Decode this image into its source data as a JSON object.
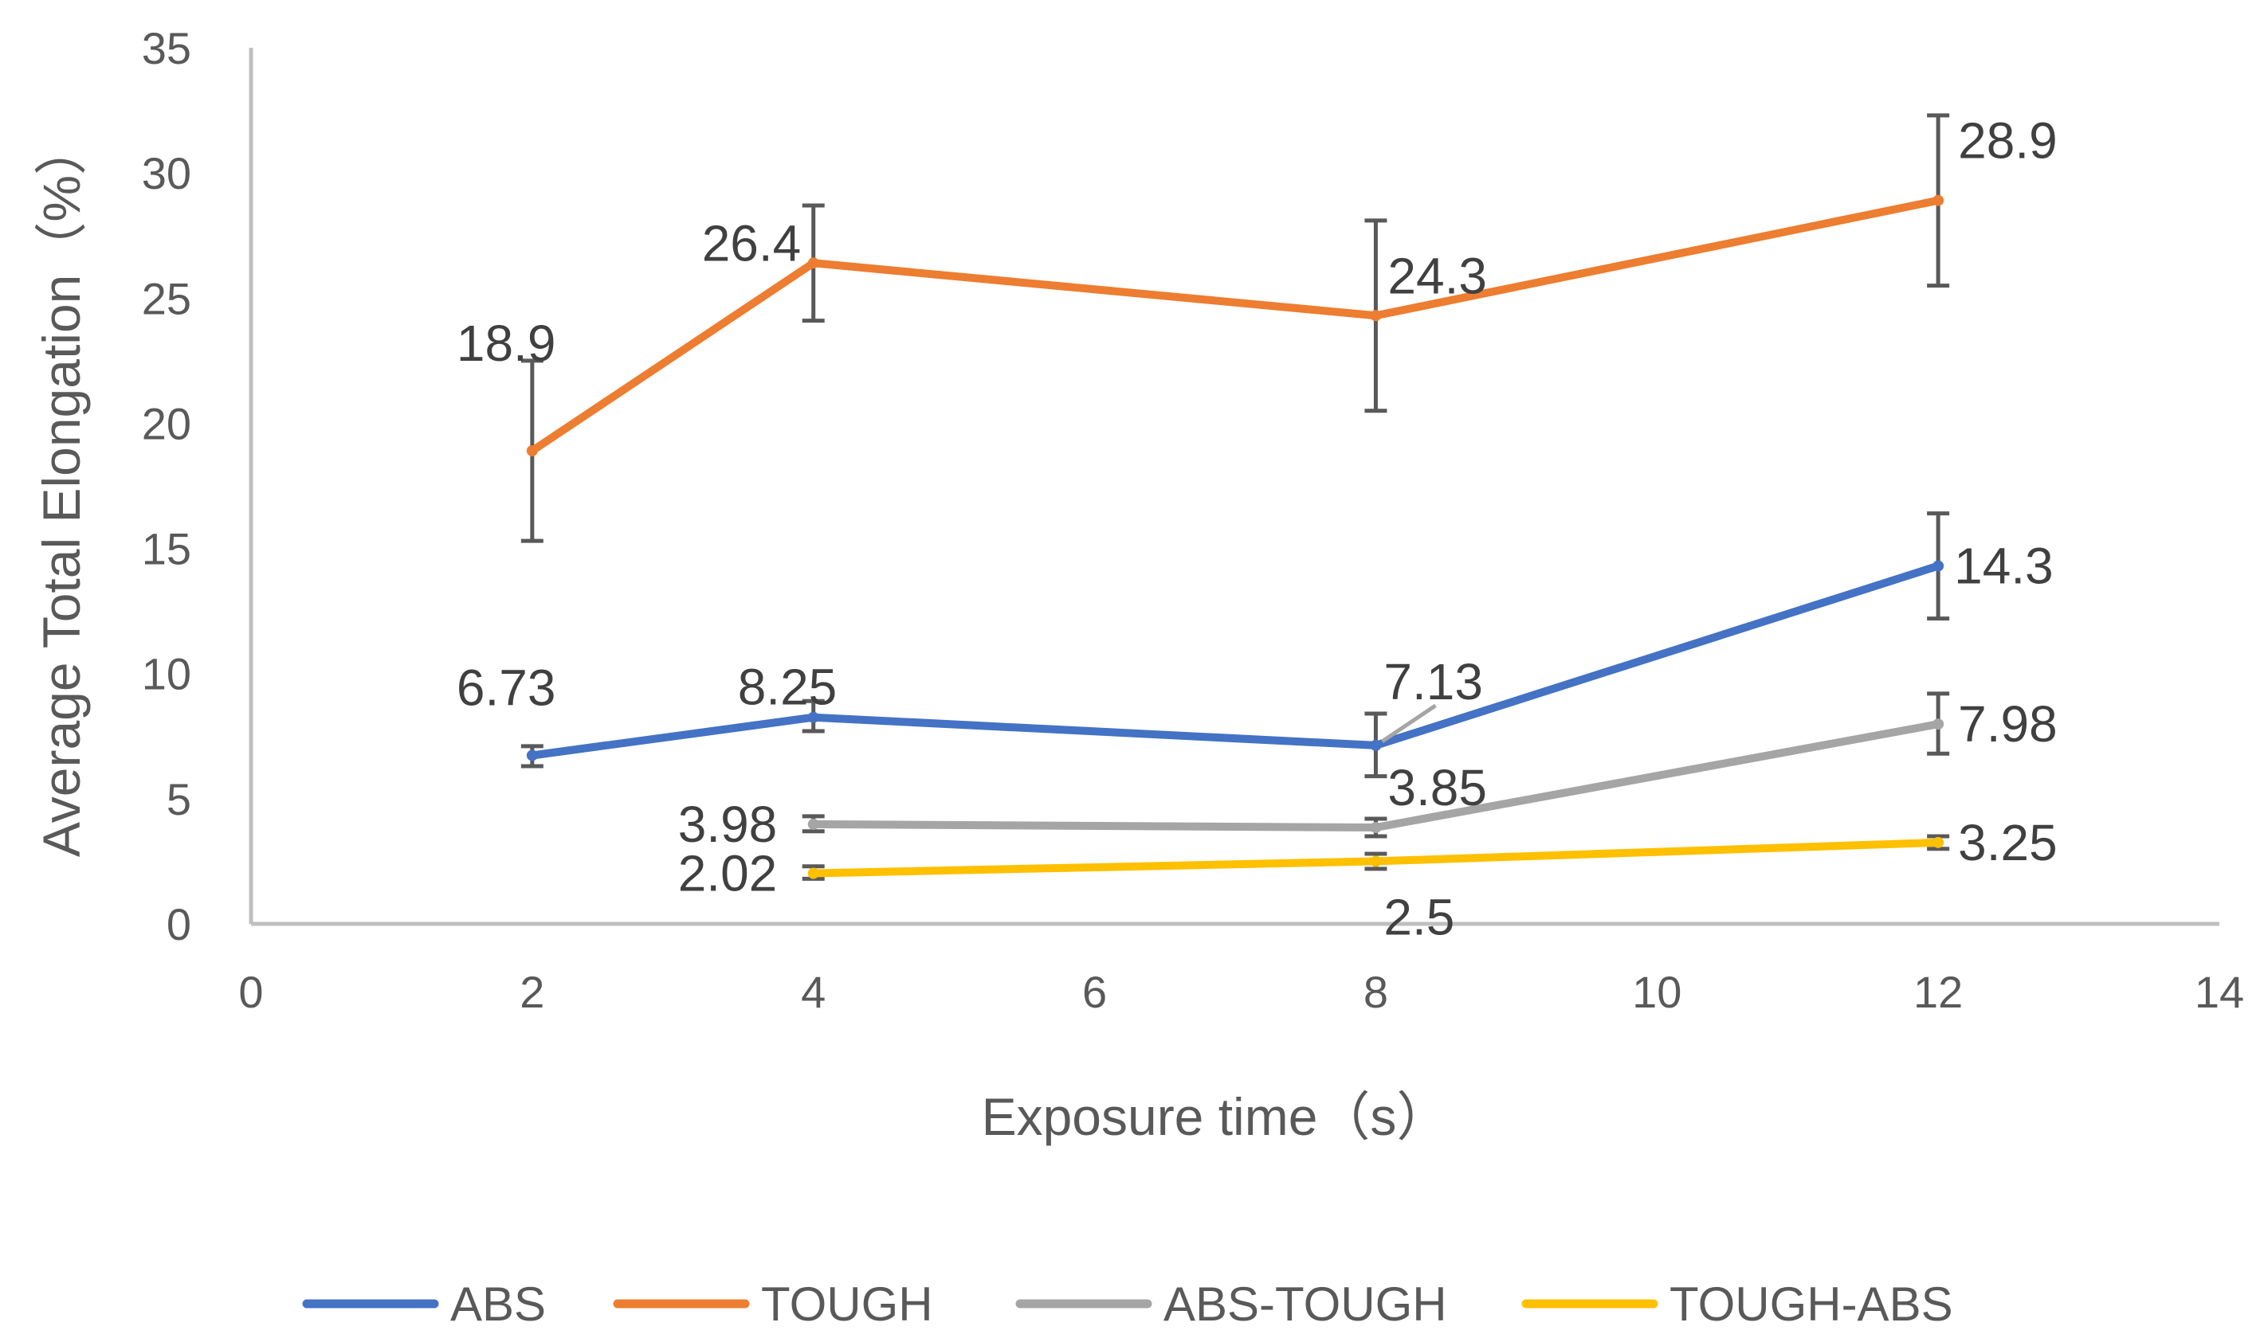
{
  "chart_data": {
    "type": "line",
    "title": "",
    "xlabel": "Exposure time（s）",
    "ylabel": "Average Total Elongation（%）",
    "xlim": [
      0,
      14
    ],
    "ylim": [
      0,
      35
    ],
    "x_ticks": [
      "0",
      "2",
      "4",
      "6",
      "8",
      "10",
      "12",
      "14"
    ],
    "y_ticks": [
      "0",
      "5",
      "10",
      "15",
      "20",
      "25",
      "30",
      "35"
    ],
    "grid": false,
    "legend_position": "bottom",
    "series": [
      {
        "name": "ABS",
        "color": "#4472C4",
        "x": [
          2,
          4,
          8,
          12
        ],
        "values": [
          6.73,
          8.25,
          7.13,
          14.3
        ],
        "labels": [
          "6.73",
          "8.25",
          "7.13",
          "14.3"
        ],
        "error_low": [
          6.3,
          7.7,
          5.9,
          12.2
        ],
        "error_high": [
          7.1,
          8.9,
          8.4,
          16.4
        ]
      },
      {
        "name": "TOUGH",
        "color": "#ED7D31",
        "x": [
          2,
          4,
          8,
          12
        ],
        "values": [
          18.9,
          26.4,
          24.3,
          28.9
        ],
        "labels": [
          "18.9",
          "26.4",
          "24.3",
          "28.9"
        ],
        "error_low": [
          15.3,
          24.1,
          20.5,
          25.5
        ],
        "error_high": [
          22.5,
          28.7,
          28.1,
          32.3
        ]
      },
      {
        "name": "ABS-TOUGH",
        "color": "#A5A5A5",
        "x": [
          4,
          8,
          12
        ],
        "values": [
          3.98,
          3.85,
          7.98
        ],
        "labels": [
          "3.98",
          "3.85",
          "7.98"
        ],
        "error_low": [
          3.7,
          3.5,
          6.8
        ],
        "error_high": [
          4.3,
          4.2,
          9.2
        ]
      },
      {
        "name": "TOUGH-ABS",
        "color": "#FFC000",
        "x": [
          4,
          8,
          12
        ],
        "values": [
          2.02,
          2.5,
          3.25
        ],
        "labels": [
          "2.02",
          "2.5",
          "3.25"
        ],
        "error_low": [
          1.8,
          2.2,
          3.0
        ],
        "error_high": [
          2.3,
          2.8,
          3.5
        ]
      }
    ]
  }
}
